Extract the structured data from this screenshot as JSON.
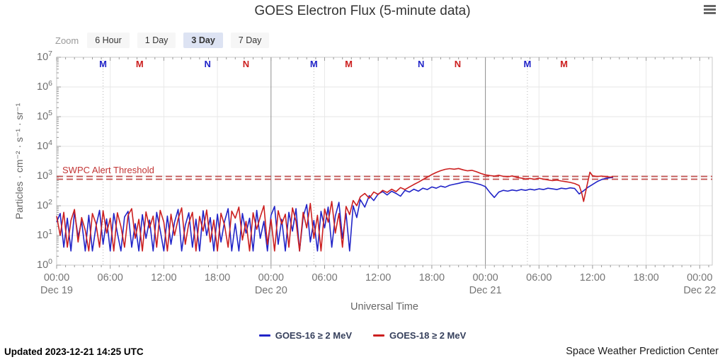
{
  "header": {
    "title": "GOES Electron Flux (5-minute data)",
    "menu_icon": "hamburger-menu"
  },
  "toolbar": {
    "zoom_label": "Zoom",
    "buttons": [
      {
        "label": "6 Hour",
        "active": false
      },
      {
        "label": "1 Day",
        "active": false
      },
      {
        "label": "3 Day",
        "active": true
      },
      {
        "label": "7 Day",
        "active": false
      }
    ]
  },
  "footer": {
    "updated": "Updated 2023-12-21 14:25 UTC",
    "source": "Space Weather Prediction Center"
  },
  "chart_data": {
    "type": "line",
    "title": "GOES Electron Flux (5-minute data)",
    "xlabel": "Universal Time",
    "ylabel": "Particles · cm⁻² · s⁻¹ · sr⁻¹",
    "y_scale": "log",
    "y_tick_exponents": [
      7,
      6,
      5,
      4,
      3,
      2,
      1,
      0
    ],
    "x_hours_max": 73.4,
    "x_ticks": [
      {
        "t": 0,
        "time": "00:00",
        "date": "Dec 19"
      },
      {
        "t": 6,
        "time": "06:00"
      },
      {
        "t": 12,
        "time": "12:00"
      },
      {
        "t": 18,
        "time": "18:00"
      },
      {
        "t": 24,
        "time": "00:00",
        "date": "Dec 20"
      },
      {
        "t": 30,
        "time": "06:00"
      },
      {
        "t": 36,
        "time": "12:00"
      },
      {
        "t": 42,
        "time": "18:00"
      },
      {
        "t": 48,
        "time": "00:00",
        "date": "Dec 21"
      },
      {
        "t": 54,
        "time": "06:00"
      },
      {
        "t": 60,
        "time": "12:00"
      },
      {
        "t": 66,
        "time": "18:00"
      },
      {
        "t": 72,
        "time": "00:00",
        "date": "Dec 22"
      }
    ],
    "day_lines_t": [
      24,
      48
    ],
    "grid_6h_t": [
      6,
      12,
      18,
      30,
      36,
      42,
      54,
      60,
      66,
      72
    ],
    "threshold": {
      "value": 1000,
      "label": "SWPC Alert Threshold",
      "color": "#c0504f",
      "label_color": "#c23535"
    },
    "satellite_markers": [
      {
        "t": 5.2,
        "letter": "M",
        "color": "#2124c8"
      },
      {
        "t": 9.3,
        "letter": "M",
        "color": "#cc1f1f"
      },
      {
        "t": 16.9,
        "letter": "N",
        "color": "#2124c8"
      },
      {
        "t": 21.2,
        "letter": "N",
        "color": "#cc1f1f"
      },
      {
        "t": 28.8,
        "letter": "M",
        "color": "#2124c8"
      },
      {
        "t": 32.7,
        "letter": "M",
        "color": "#cc1f1f"
      },
      {
        "t": 40.8,
        "letter": "N",
        "color": "#2124c8"
      },
      {
        "t": 44.9,
        "letter": "N",
        "color": "#cc1f1f"
      },
      {
        "t": 52.7,
        "letter": "M",
        "color": "#2124c8"
      },
      {
        "t": 56.8,
        "letter": "M",
        "color": "#cc1f1f"
      }
    ],
    "marker_dotted_lines_t": [
      5.2,
      28.8,
      52.7
    ],
    "legend_position": "bottom",
    "series": [
      {
        "name": "GOES-16 ≥ 2 MeV",
        "color": "#2124c8",
        "points": [
          [
            0,
            28
          ],
          [
            0.4,
            55
          ],
          [
            0.8,
            4
          ],
          [
            1.2,
            38
          ],
          [
            1.6,
            3
          ],
          [
            2,
            62
          ],
          [
            2.4,
            9
          ],
          [
            2.8,
            30
          ],
          [
            3.2,
            3
          ],
          [
            3.6,
            48
          ],
          [
            4,
            3
          ],
          [
            4.4,
            20
          ],
          [
            4.8,
            70
          ],
          [
            5.2,
            5
          ],
          [
            5.6,
            36
          ],
          [
            6,
            3
          ],
          [
            6.4,
            55
          ],
          [
            6.8,
            12
          ],
          [
            7.2,
            3
          ],
          [
            7.6,
            42
          ],
          [
            8,
            65
          ],
          [
            8.4,
            4
          ],
          [
            8.8,
            25
          ],
          [
            9.2,
            3
          ],
          [
            9.6,
            50
          ],
          [
            10,
            8
          ],
          [
            10.4,
            33
          ],
          [
            10.8,
            3
          ],
          [
            11.2,
            60
          ],
          [
            11.6,
            15
          ],
          [
            12,
            3
          ],
          [
            12.4,
            45
          ],
          [
            12.8,
            5
          ],
          [
            13.2,
            28
          ],
          [
            13.6,
            75
          ],
          [
            14,
            3
          ],
          [
            14.4,
            22
          ],
          [
            14.8,
            58
          ],
          [
            15.2,
            4
          ],
          [
            15.6,
            35
          ],
          [
            16,
            3
          ],
          [
            16.4,
            68
          ],
          [
            16.8,
            10
          ],
          [
            17.2,
            40
          ],
          [
            17.6,
            3
          ],
          [
            18,
            52
          ],
          [
            18.4,
            6
          ],
          [
            18.8,
            30
          ],
          [
            19.2,
            80
          ],
          [
            19.6,
            3
          ],
          [
            20,
            25
          ],
          [
            20.4,
            3
          ],
          [
            20.8,
            55
          ],
          [
            21.2,
            12
          ],
          [
            21.6,
            38
          ],
          [
            22,
            3
          ],
          [
            22.4,
            70
          ],
          [
            22.8,
            8
          ],
          [
            23.2,
            30
          ],
          [
            23.6,
            3
          ],
          [
            24,
            48
          ],
          [
            24.4,
            95
          ],
          [
            24.8,
            5
          ],
          [
            25.2,
            35
          ],
          [
            25.6,
            3
          ],
          [
            26,
            60
          ],
          [
            26.4,
            14
          ],
          [
            26.8,
            80
          ],
          [
            27.2,
            3
          ],
          [
            27.6,
            42
          ],
          [
            28,
            110
          ],
          [
            28.4,
            6
          ],
          [
            28.8,
            32
          ],
          [
            29.2,
            3
          ],
          [
            29.6,
            65
          ],
          [
            30,
            18
          ],
          [
            30.4,
            90
          ],
          [
            30.8,
            4
          ],
          [
            31.2,
            45
          ],
          [
            31.6,
            130
          ],
          [
            32,
            8
          ],
          [
            32.4,
            55
          ],
          [
            32.8,
            3
          ],
          [
            33.2,
            100
          ],
          [
            33.6,
            40
          ],
          [
            34,
            160
          ],
          [
            34.5,
            90
          ],
          [
            35,
            220
          ],
          [
            35.5,
            150
          ],
          [
            36,
            250
          ],
          [
            36.5,
            300
          ],
          [
            37,
            230
          ],
          [
            37.5,
            310
          ],
          [
            38,
            260
          ],
          [
            38.5,
            210
          ],
          [
            39,
            330
          ],
          [
            39.5,
            290
          ],
          [
            40,
            360
          ],
          [
            40.5,
            310
          ],
          [
            41,
            390
          ],
          [
            41.5,
            350
          ],
          [
            42,
            430
          ],
          [
            42.5,
            390
          ],
          [
            43,
            460
          ],
          [
            43.5,
            420
          ],
          [
            44,
            490
          ],
          [
            44.5,
            530
          ],
          [
            45,
            570
          ],
          [
            45.5,
            620
          ],
          [
            46,
            650
          ],
          [
            46.5,
            610
          ],
          [
            47,
            560
          ],
          [
            47.5,
            510
          ],
          [
            48,
            440
          ],
          [
            48.5,
            280
          ],
          [
            49,
            190
          ],
          [
            49.5,
            290
          ],
          [
            50,
            330
          ],
          [
            50.5,
            310
          ],
          [
            51,
            340
          ],
          [
            51.5,
            320
          ],
          [
            52,
            350
          ],
          [
            52.5,
            330
          ],
          [
            53,
            360
          ],
          [
            53.5,
            340
          ],
          [
            54,
            370
          ],
          [
            54.5,
            350
          ],
          [
            55,
            390
          ],
          [
            55.5,
            370
          ],
          [
            56,
            350
          ],
          [
            56.5,
            390
          ],
          [
            57,
            370
          ],
          [
            57.5,
            400
          ],
          [
            58,
            380
          ],
          [
            58.5,
            250
          ],
          [
            59,
            320
          ],
          [
            59.5,
            420
          ],
          [
            60,
            520
          ],
          [
            60.5,
            650
          ],
          [
            61,
            760
          ],
          [
            61.5,
            840
          ],
          [
            62,
            880
          ],
          [
            62.3,
            900
          ]
        ]
      },
      {
        "name": "GOES-18 ≥ 2 MeV",
        "color": "#cc1f1f",
        "points": [
          [
            0,
            45
          ],
          [
            0.4,
            10
          ],
          [
            0.8,
            60
          ],
          [
            1.2,
            4
          ],
          [
            1.6,
            32
          ],
          [
            2,
            75
          ],
          [
            2.4,
            6
          ],
          [
            2.8,
            40
          ],
          [
            3.2,
            15
          ],
          [
            3.6,
            3
          ],
          [
            4,
            55
          ],
          [
            4.4,
            25
          ],
          [
            4.8,
            4
          ],
          [
            5.2,
            68
          ],
          [
            5.6,
            12
          ],
          [
            6,
            38
          ],
          [
            6.4,
            3
          ],
          [
            6.8,
            58
          ],
          [
            7.2,
            20
          ],
          [
            7.6,
            4
          ],
          [
            8,
            48
          ],
          [
            8.4,
            80
          ],
          [
            8.8,
            8
          ],
          [
            9.2,
            35
          ],
          [
            9.6,
            3
          ],
          [
            10,
            62
          ],
          [
            10.4,
            18
          ],
          [
            10.8,
            45
          ],
          [
            11.2,
            4
          ],
          [
            11.6,
            70
          ],
          [
            12,
            28
          ],
          [
            12.4,
            3
          ],
          [
            12.8,
            52
          ],
          [
            13.2,
            10
          ],
          [
            13.6,
            36
          ],
          [
            14,
            85
          ],
          [
            14.4,
            5
          ],
          [
            14.8,
            26
          ],
          [
            15.2,
            60
          ],
          [
            15.6,
            3
          ],
          [
            16,
            44
          ],
          [
            16.4,
            14
          ],
          [
            16.8,
            72
          ],
          [
            17.2,
            6
          ],
          [
            17.6,
            33
          ],
          [
            18,
            3
          ],
          [
            18.4,
            56
          ],
          [
            18.8,
            22
          ],
          [
            19.2,
            4
          ],
          [
            19.6,
            66
          ],
          [
            20,
            38
          ],
          [
            20.4,
            90
          ],
          [
            20.8,
            7
          ],
          [
            21.2,
            30
          ],
          [
            21.6,
            3
          ],
          [
            22,
            58
          ],
          [
            22.4,
            16
          ],
          [
            22.8,
            42
          ],
          [
            23.2,
            100
          ],
          [
            23.6,
            5
          ],
          [
            24,
            35
          ],
          [
            24.4,
            3
          ],
          [
            24.8,
            68
          ],
          [
            25.2,
            24
          ],
          [
            25.6,
            52
          ],
          [
            26,
            4
          ],
          [
            26.4,
            85
          ],
          [
            26.8,
            30
          ],
          [
            27.2,
            3
          ],
          [
            27.6,
            60
          ],
          [
            28,
            18
          ],
          [
            28.4,
            120
          ],
          [
            28.8,
            8
          ],
          [
            29.2,
            48
          ],
          [
            29.6,
            3
          ],
          [
            30,
            78
          ],
          [
            30.4,
            28
          ],
          [
            30.8,
            140
          ],
          [
            31.2,
            12
          ],
          [
            31.6,
            55
          ],
          [
            32,
            4
          ],
          [
            32.4,
            95
          ],
          [
            32.8,
            50
          ],
          [
            33.2,
            150
          ],
          [
            33.6,
            100
          ],
          [
            34,
            200
          ],
          [
            34.5,
            260
          ],
          [
            35,
            180
          ],
          [
            35.5,
            290
          ],
          [
            36,
            240
          ],
          [
            36.5,
            330
          ],
          [
            37,
            280
          ],
          [
            37.5,
            360
          ],
          [
            38,
            300
          ],
          [
            38.5,
            410
          ],
          [
            39,
            350
          ],
          [
            39.5,
            430
          ],
          [
            40,
            520
          ],
          [
            40.5,
            620
          ],
          [
            41,
            760
          ],
          [
            41.5,
            920
          ],
          [
            42,
            1120
          ],
          [
            42.5,
            1320
          ],
          [
            43,
            1520
          ],
          [
            43.5,
            1680
          ],
          [
            44,
            1780
          ],
          [
            44.5,
            1700
          ],
          [
            45,
            1800
          ],
          [
            45.5,
            1620
          ],
          [
            46,
            1500
          ],
          [
            46.5,
            1560
          ],
          [
            47,
            1400
          ],
          [
            47.5,
            1220
          ],
          [
            48,
            1100
          ],
          [
            48.5,
            1040
          ],
          [
            49,
            1000
          ],
          [
            49.5,
            1060
          ],
          [
            50,
            980
          ],
          [
            50.5,
            940
          ],
          [
            51,
            1010
          ],
          [
            51.5,
            900
          ],
          [
            52,
            860
          ],
          [
            52.5,
            800
          ],
          [
            53,
            830
          ],
          [
            53.5,
            780
          ],
          [
            54,
            850
          ],
          [
            54.5,
            790
          ],
          [
            55,
            740
          ],
          [
            55.5,
            700
          ],
          [
            56,
            730
          ],
          [
            56.5,
            680
          ],
          [
            57,
            650
          ],
          [
            57.5,
            610
          ],
          [
            58,
            560
          ],
          [
            58.5,
            480
          ],
          [
            58.8,
            260
          ],
          [
            59,
            140
          ],
          [
            59.4,
            520
          ],
          [
            59.7,
            1350
          ],
          [
            60,
            1020
          ],
          [
            60.5,
            960
          ],
          [
            61,
            1000
          ],
          [
            61.5,
            950
          ],
          [
            62,
            920
          ],
          [
            62.3,
            950
          ]
        ]
      }
    ]
  }
}
